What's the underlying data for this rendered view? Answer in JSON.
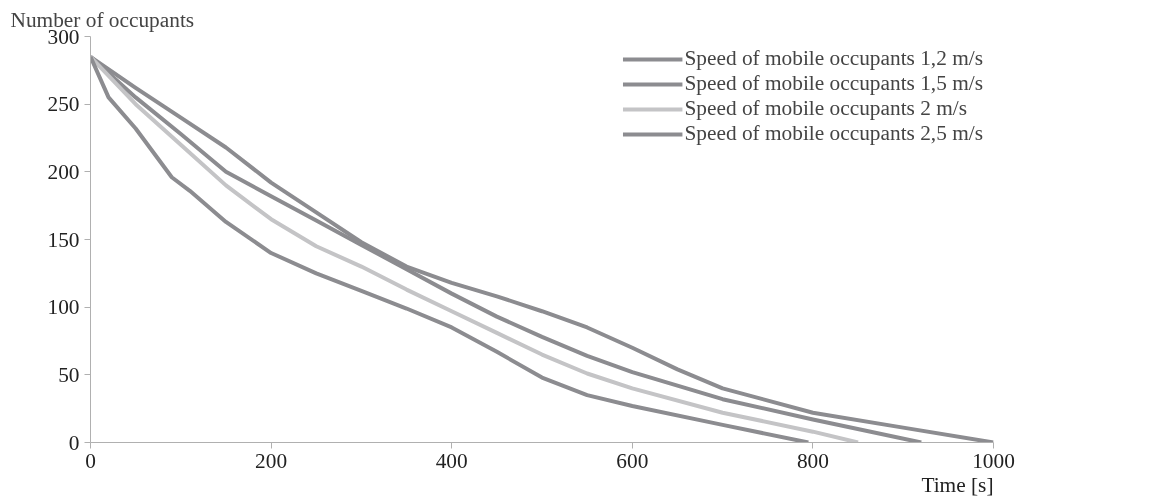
{
  "chart_data": {
    "type": "line",
    "xlabel": "Time [s]",
    "ylabel": "Number of occupants",
    "x": [
      0,
      50,
      100,
      150,
      200,
      250,
      300,
      350,
      400,
      450,
      500,
      550,
      600,
      650,
      700,
      800,
      900,
      1000
    ],
    "series": [
      {
        "name": "Speed of mobile occupants 1,2 m/s",
        "color": "#8c8c90",
        "values": [
          285,
          262,
          240,
          218,
          192,
          170,
          148,
          130,
          118,
          108,
          97,
          85,
          70,
          54,
          40,
          22,
          11,
          0
        ]
      },
      {
        "name": "Speed of mobile occupants 1,5 m/s",
        "color": "#8c8c90",
        "x": [
          0,
          50,
          100,
          150,
          200,
          250,
          300,
          350,
          400,
          450,
          500,
          550,
          600,
          700,
          800,
          920
        ],
        "values": [
          285,
          255,
          228,
          200,
          182,
          164,
          146,
          128,
          110,
          93,
          78,
          64,
          52,
          32,
          17,
          0
        ]
      },
      {
        "name": "Speed of mobile occupants 2 m/s",
        "color": "#c4c4c6",
        "x": [
          0,
          50,
          100,
          150,
          200,
          250,
          300,
          350,
          400,
          450,
          500,
          550,
          600,
          700,
          800,
          850
        ],
        "values": [
          285,
          250,
          220,
          190,
          165,
          145,
          130,
          113,
          97,
          81,
          65,
          51,
          40,
          22,
          8,
          0
        ]
      },
      {
        "name": "Speed of mobile occupants 2,5 m/s",
        "color": "#8c8c90",
        "x": [
          0,
          20,
          50,
          90,
          110,
          150,
          200,
          250,
          300,
          350,
          400,
          450,
          500,
          550,
          600,
          700,
          795
        ],
        "values": [
          285,
          255,
          232,
          196,
          186,
          163,
          140,
          125,
          112,
          99,
          85,
          67,
          48,
          35,
          27,
          13,
          0
        ]
      }
    ],
    "xlim": [
      0,
      1000
    ],
    "ylim": [
      0,
      300
    ],
    "xticks": [
      0,
      200,
      400,
      600,
      800,
      1000
    ],
    "yticks": [
      0,
      50,
      100,
      150,
      200,
      250,
      300
    ],
    "grid": false,
    "legend": "top right",
    "marker": "none",
    "line_style": "solid"
  }
}
